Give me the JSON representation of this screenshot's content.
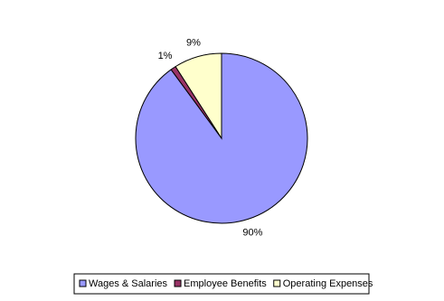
{
  "chart_data": {
    "type": "pie",
    "categories": [
      "Wages & Salaries",
      "Employee Benefits",
      "Operating Expenses"
    ],
    "values": [
      90,
      1,
      9
    ],
    "value_labels": [
      "90%",
      "1%",
      "9%"
    ],
    "colors": [
      "#9999ff",
      "#993366",
      "#ffffcc"
    ],
    "legend": "bottom"
  }
}
